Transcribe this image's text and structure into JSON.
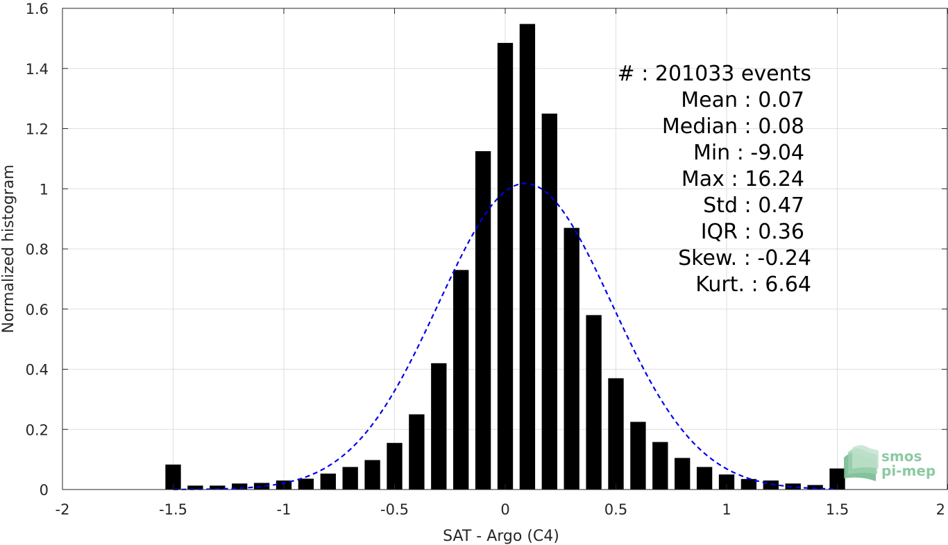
{
  "chart_data": {
    "type": "bar",
    "xlabel": "SAT - Argo (C4)",
    "ylabel": "Normalized histogram",
    "xlim": [
      -2,
      2
    ],
    "ylim": [
      0,
      1.6
    ],
    "xticks": [
      -2,
      -1.5,
      -1,
      -0.5,
      0,
      0.5,
      1,
      1.5,
      2
    ],
    "xtick_labels": [
      "-2",
      "-1.5",
      "-1",
      "-0.5",
      "0",
      "0.5",
      "1",
      "1.5",
      "2"
    ],
    "yticks": [
      0,
      0.2,
      0.4,
      0.6,
      0.8,
      1,
      1.2,
      1.4,
      1.6
    ],
    "ytick_labels": [
      "0",
      "0.2",
      "0.4",
      "0.6",
      "0.8",
      "1",
      "1.2",
      "1.4",
      "1.6"
    ],
    "grid": true,
    "bar_color": "#000000",
    "bins": [
      -1.5,
      -1.4,
      -1.3,
      -1.2,
      -1.1,
      -1.0,
      -0.9,
      -0.8,
      -0.7,
      -0.6,
      -0.5,
      -0.4,
      -0.3,
      -0.2,
      -0.1,
      0.0,
      0.1,
      0.2,
      0.3,
      0.4,
      0.5,
      0.6,
      0.7,
      0.8,
      0.9,
      1.0,
      1.1,
      1.2,
      1.3,
      1.4,
      1.5
    ],
    "values": [
      0.083,
      0.013,
      0.013,
      0.02,
      0.022,
      0.03,
      0.036,
      0.053,
      0.075,
      0.098,
      0.155,
      0.25,
      0.42,
      0.73,
      1.125,
      1.485,
      1.548,
      1.25,
      0.87,
      0.58,
      0.37,
      0.225,
      0.158,
      0.105,
      0.075,
      0.05,
      0.035,
      0.03,
      0.02,
      0.015,
      0.07
    ],
    "fit": {
      "type": "normal",
      "mean": 0.09,
      "std": 0.392,
      "x_range": [
        -1.5,
        1.5
      ],
      "color": "#0000ee",
      "style": "dashed"
    }
  },
  "stats": [
    {
      "label": "#  : 201033 events"
    },
    {
      "label": "Mean : 0.07"
    },
    {
      "label": "Median : 0.08"
    },
    {
      "label": "Min : -9.04"
    },
    {
      "label": "Max : 16.24"
    },
    {
      "label": "Std : 0.47"
    },
    {
      "label": "IQR : 0.36"
    },
    {
      "label": "Skew. : -0.24"
    },
    {
      "label": "Kurt. : 6.64"
    }
  ],
  "logo": {
    "line1": "smos",
    "line2": "pi-mep",
    "color": "#8cc9a3"
  }
}
